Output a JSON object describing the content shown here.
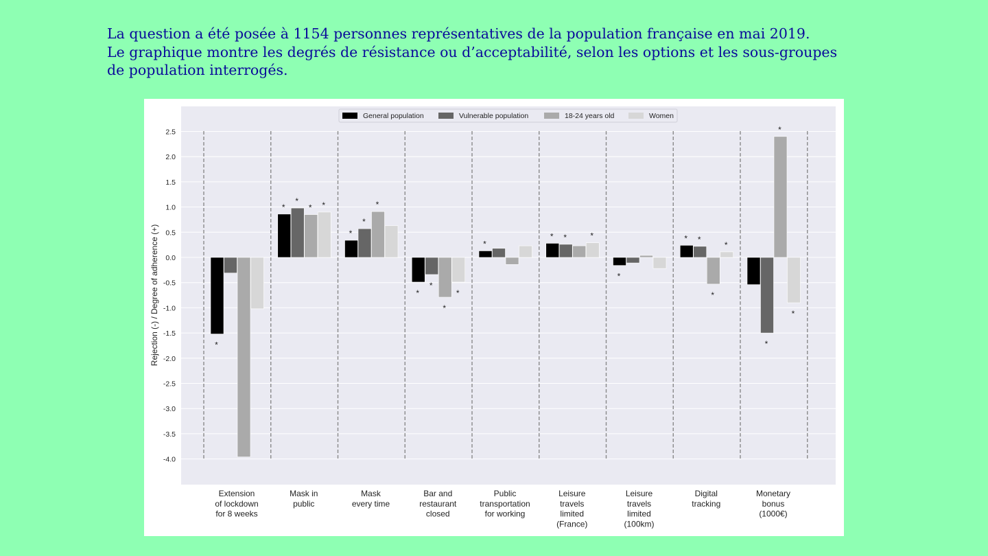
{
  "intro": {
    "line1": "La question a été posée à 1154 personnes représentatives de la population française en mai 2019.",
    "line2": "Le graphique montre les degrés de résistance ou d’acceptabilité, selon les options et les sous-groupes",
    "line3": "de population interrogés."
  },
  "chart_data": {
    "type": "bar",
    "title": "",
    "xlabel": "",
    "ylabel": "Rejection (-) / Degree of adherence (+)",
    "ylim": [
      -4.5,
      2.5
    ],
    "yticks": [
      "2.5",
      "2.0",
      "1.5",
      "1.0",
      "0.5",
      "0.0",
      "-0.5",
      "-1.0",
      "-1.5",
      "-2.0",
      "-2.5",
      "-3.0",
      "-3.5",
      "-4.0"
    ],
    "legend_position": "top-center",
    "grid": true,
    "categories": [
      [
        "Extension",
        "of lockdown",
        "for 8 weeks"
      ],
      [
        "Mask in",
        "public"
      ],
      [
        "Mask",
        "every time"
      ],
      [
        "Bar and",
        "restaurant",
        "closed"
      ],
      [
        "Public",
        "transportation",
        "for working"
      ],
      [
        "Leisure",
        "travels",
        "limited",
        "(France)"
      ],
      [
        "Leisure",
        "travels",
        "limited",
        "(100km)"
      ],
      [
        "Digital",
        "tracking"
      ],
      [
        "Monetary",
        "bonus",
        "(1000€)"
      ]
    ],
    "series": [
      {
        "name": "General population",
        "color": "#000000",
        "values": [
          -1.52,
          0.86,
          0.34,
          -0.49,
          0.13,
          0.28,
          -0.16,
          0.24,
          -0.54
        ],
        "significant": [
          true,
          true,
          true,
          true,
          true,
          true,
          true,
          true,
          false
        ]
      },
      {
        "name": "Vulnerable population",
        "color": "#666666",
        "values": [
          -0.31,
          0.98,
          0.57,
          -0.34,
          0.18,
          0.26,
          -0.11,
          0.22,
          -1.5
        ],
        "significant": [
          false,
          true,
          true,
          true,
          false,
          true,
          false,
          true,
          true
        ]
      },
      {
        "name": "18-24 years old",
        "color": "#aaaaaa",
        "values": [
          -3.96,
          0.85,
          0.91,
          -0.79,
          -0.14,
          0.23,
          0.04,
          -0.53,
          2.4
        ],
        "significant": [
          false,
          true,
          true,
          true,
          false,
          false,
          false,
          true,
          true
        ]
      },
      {
        "name": "Women",
        "color": "#d7d7d7",
        "values": [
          -1.02,
          0.9,
          0.63,
          -0.49,
          0.23,
          0.29,
          -0.22,
          0.11,
          -0.9
        ],
        "significant": [
          false,
          true,
          false,
          true,
          false,
          true,
          false,
          true,
          true
        ]
      }
    ],
    "significance_marker": "*"
  }
}
